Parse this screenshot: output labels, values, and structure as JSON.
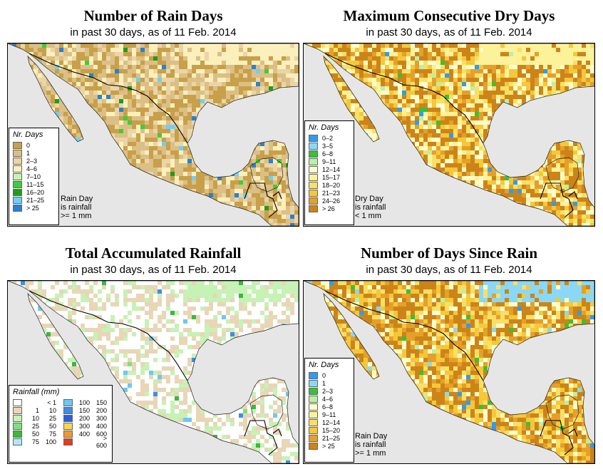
{
  "panels": [
    {
      "title": "Number of Rain Days",
      "subtitle": "in past 30 days, as of  11 Feb. 2014",
      "legend_title": "Nr. Days",
      "note": [
        "Rain Day",
        "is rainfall",
        ">= 1 mm"
      ],
      "legend": [
        {
          "label": "0",
          "color": "#c8a04a"
        },
        {
          "label": "1",
          "color": "#dcbf85"
        },
        {
          "label": "2–3",
          "color": "#ead4a8"
        },
        {
          "label": "4–6",
          "color": "#fbf0bc"
        },
        {
          "label": "7–10",
          "color": "#c8f2b4"
        },
        {
          "label": "11–15",
          "color": "#3cce3c"
        },
        {
          "label": "16–20",
          "color": "#1c9e1c"
        },
        {
          "label": "21–25",
          "color": "#6ecff8"
        },
        {
          "label": "> 25",
          "color": "#2682d6"
        }
      ]
    },
    {
      "title": "Maximum Consecutive Dry Days",
      "subtitle": "in past 30 days, as of  11 Feb. 2014",
      "legend_title": "Nr. Days",
      "note": [
        "Dry Day",
        "is rainfall",
        "< 1 mm"
      ],
      "legend": [
        {
          "label": "0–2",
          "color": "#2d9df0"
        },
        {
          "label": "3–5",
          "color": "#8ad8f5"
        },
        {
          "label": "6–8",
          "color": "#36c236"
        },
        {
          "label": "9–11",
          "color": "#b9f0a8"
        },
        {
          "label": "12–14",
          "color": "#fdfccc"
        },
        {
          "label": "15–17",
          "color": "#fbf29a"
        },
        {
          "label": "18–20",
          "color": "#f8e068"
        },
        {
          "label": "21–23",
          "color": "#f4c83a"
        },
        {
          "label": "24–26",
          "color": "#e6a02a"
        },
        {
          "label": "> 26",
          "color": "#cc8418"
        }
      ]
    },
    {
      "title": "Total Accumulated Rainfall",
      "subtitle": "in past 30 days, as of  11 Feb. 2014",
      "legend_title": "Rainfall (mm)",
      "legend_rain": [
        [
          {
            "lo": "",
            "hi": "< 1",
            "color": "#ffffff"
          },
          {
            "lo": "1",
            "hi": "10",
            "color": "#e8d6b6"
          },
          {
            "lo": "10",
            "hi": "25",
            "color": "#c6f2b6"
          },
          {
            "lo": "25",
            "hi": "50",
            "color": "#7ee07e"
          },
          {
            "lo": "50",
            "hi": "75",
            "color": "#3cb83c"
          },
          {
            "lo": "75",
            "hi": "100",
            "color": "#b0e8f8"
          }
        ],
        [
          {
            "lo": "100",
            "hi": "150",
            "color": "#6cc8f2"
          },
          {
            "lo": "150",
            "hi": "200",
            "color": "#3b8fe6"
          },
          {
            "lo": "200",
            "hi": "300",
            "color": "#2c5fd6"
          },
          {
            "lo": "300",
            "hi": "400",
            "color": "#f8d84a"
          },
          {
            "lo": "400",
            "hi": "600",
            "color": "#f09830"
          },
          {
            "lo": "",
            "hi": "> 600",
            "color": "#e83a1c"
          }
        ]
      ]
    },
    {
      "title": "Number of Days Since Rain",
      "subtitle": "in past 30 days, as of  11 Feb. 2014",
      "legend_title": "Nr. Days",
      "note": [
        "Rain Day",
        "is rainfall",
        ">= 1 mm"
      ],
      "legend": [
        {
          "label": "0",
          "color": "#2d9df0"
        },
        {
          "label": "1",
          "color": "#8ad8f5"
        },
        {
          "label": "2–3",
          "color": "#36c236"
        },
        {
          "label": "4–6",
          "color": "#b9f0a8"
        },
        {
          "label": "6–8",
          "color": "#fdfccc"
        },
        {
          "label": "9–11",
          "color": "#fbf29a"
        },
        {
          "label": "12–14",
          "color": "#f8e068"
        },
        {
          "label": "15–20",
          "color": "#f4c83a"
        },
        {
          "label": "21–25",
          "color": "#e6a02a"
        },
        {
          "label": "> 25",
          "color": "#cc8418"
        }
      ]
    }
  ],
  "colors": {
    "ocean": "#e6e6e6",
    "border": "#000000"
  }
}
